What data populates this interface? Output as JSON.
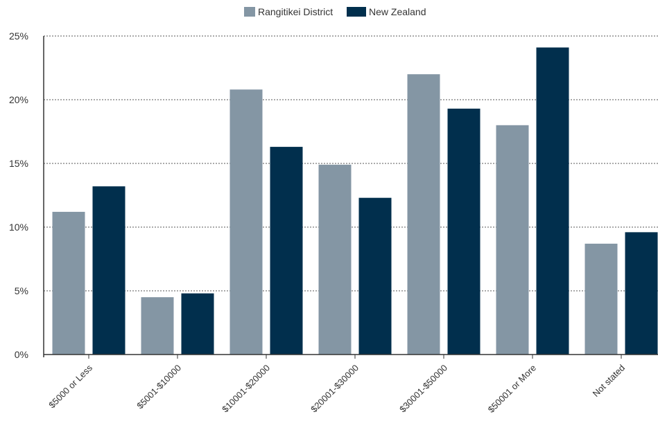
{
  "chart_data": {
    "type": "bar",
    "categories": [
      "$5000 or Less",
      "$5001-$10000",
      "$10001-$20000",
      "$20001-$30000",
      "$30001-$50000",
      "$50001 or More",
      "Not stated"
    ],
    "series": [
      {
        "name": "Rangitikei District",
        "color": "#8496a4",
        "values": [
          11.2,
          4.5,
          20.8,
          14.9,
          22.0,
          18.0,
          8.7
        ]
      },
      {
        "name": "New Zealand",
        "color": "#012f4d",
        "values": [
          13.2,
          4.8,
          16.3,
          12.3,
          19.3,
          24.1,
          9.6
        ]
      }
    ],
    "y_ticks": [
      "0%",
      "5%",
      "10%",
      "15%",
      "20%",
      "25%"
    ],
    "ylim": [
      0,
      25
    ],
    "grid": true,
    "legend_position": "top-center"
  }
}
